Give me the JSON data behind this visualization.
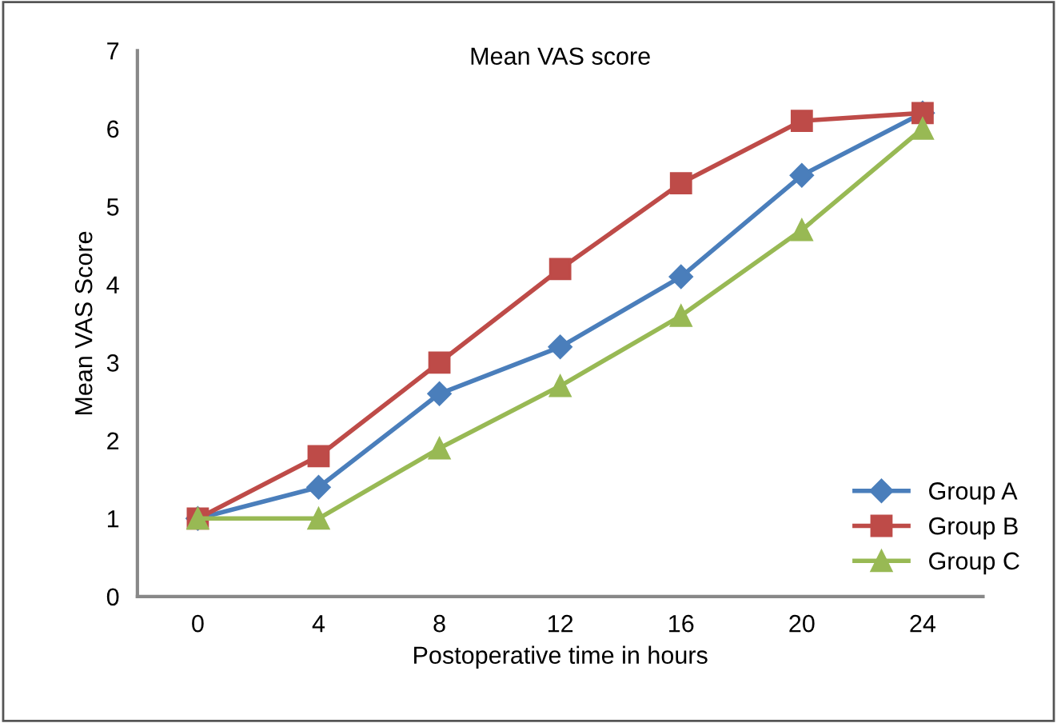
{
  "chart_data": {
    "type": "line",
    "title": "Mean VAS score",
    "xlabel": "Postoperative time in hours",
    "ylabel": "Mean VAS Score",
    "categories": [
      "0",
      "4",
      "8",
      "12",
      "16",
      "20",
      "24"
    ],
    "series": [
      {
        "name": "Group A",
        "color": "#4a7ebb",
        "marker": "diamond",
        "values": [
          1,
          1.4,
          2.6,
          3.2,
          4.1,
          5.4,
          6.2
        ]
      },
      {
        "name": "Group B",
        "color": "#be4b48",
        "marker": "square",
        "values": [
          1,
          1.8,
          3.0,
          4.2,
          5.3,
          6.1,
          6.2
        ]
      },
      {
        "name": "Group C",
        "color": "#98b954",
        "marker": "triangle",
        "values": [
          1,
          1,
          1.9,
          2.7,
          3.6,
          4.7,
          6.0
        ]
      }
    ],
    "ylim": [
      0,
      7
    ],
    "yticks": [
      0,
      1,
      2,
      3,
      4,
      5,
      6,
      7
    ],
    "grid": false,
    "legend": "bottom right",
    "line_style": "solid"
  }
}
